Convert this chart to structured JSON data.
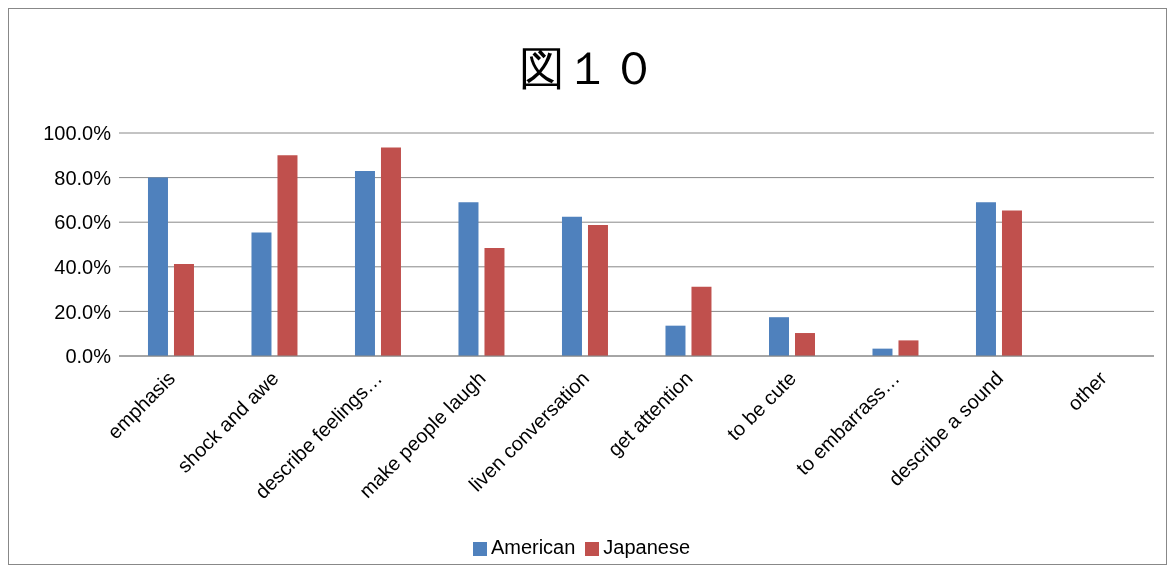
{
  "chart_data": {
    "type": "bar",
    "title": "図１０",
    "categories": [
      "emphasis",
      "shock and awe",
      "describe feelings…",
      "make people laugh",
      "liven conversation",
      "get attention",
      "to be cute",
      "to embarrass…",
      "describe a sound",
      "other"
    ],
    "series": [
      {
        "name": "American",
        "color": "#4f81bd",
        "values": [
          80,
          55.4,
          83,
          69,
          62.5,
          13.6,
          17.4,
          3.3,
          69,
          0
        ]
      },
      {
        "name": "Japanese",
        "color": "#c0504d",
        "values": [
          41.3,
          90,
          93.5,
          48.4,
          58.7,
          31,
          10.3,
          7,
          65.2,
          0
        ]
      }
    ],
    "ylim": [
      0,
      100
    ],
    "yticks": [
      {
        "value": 0,
        "label": "0.0%"
      },
      {
        "value": 20,
        "label": "20.0%"
      },
      {
        "value": 40,
        "label": "40.0%"
      },
      {
        "value": 60,
        "label": "60.0%"
      },
      {
        "value": 80,
        "label": "80.0%"
      },
      {
        "value": 100,
        "label": "100.0%"
      }
    ],
    "grid": "y",
    "legend": "bottom"
  }
}
